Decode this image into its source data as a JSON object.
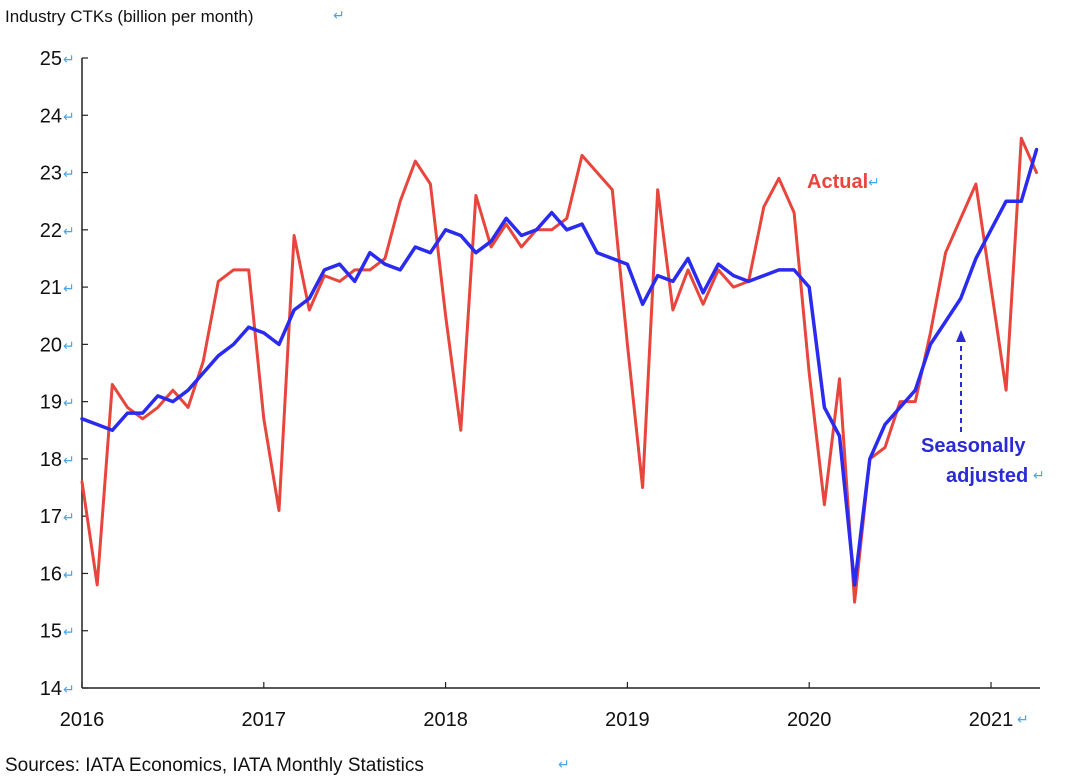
{
  "chart_data": {
    "type": "line",
    "title": "Industry CTKs (billion per month)",
    "ylim": [
      14,
      25
    ],
    "yticks": [
      "25",
      "24",
      "23",
      "22",
      "21",
      "20",
      "19",
      "18",
      "17",
      "16",
      "15",
      "14"
    ],
    "xticks": [
      "2016",
      "2017",
      "2018",
      "2019",
      "2020",
      "2021"
    ],
    "x_start": "2016-01",
    "grid": false,
    "source": "Sources: IATA Economics, IATA Monthly Statistics",
    "colors": {
      "actual": "#e8453c",
      "seasonally_adjusted": "#2b2bf0"
    },
    "annotations": {
      "actual": "Actual",
      "seasonally_adjusted_line1": "Seasonally",
      "seasonally_adjusted_line2": "adjusted"
    },
    "series": [
      {
        "name": "Actual",
        "values": [
          17.6,
          15.8,
          19.3,
          18.9,
          18.7,
          18.9,
          19.2,
          18.9,
          19.7,
          21.1,
          21.3,
          21.3,
          18.7,
          17.1,
          21.9,
          20.6,
          21.2,
          21.1,
          21.3,
          21.3,
          21.5,
          22.5,
          23.2,
          22.8,
          20.5,
          18.5,
          22.6,
          21.7,
          22.1,
          21.7,
          22.0,
          22.0,
          22.2,
          23.3,
          23.0,
          22.7,
          20.0,
          17.5,
          22.7,
          20.6,
          21.3,
          20.7,
          21.3,
          21.0,
          21.1,
          22.4,
          22.9,
          22.3,
          19.5,
          17.2,
          19.4,
          15.5,
          18.0,
          18.2,
          19.0,
          19.0,
          20.2,
          21.6,
          22.2,
          22.8,
          21.0,
          19.2,
          23.6,
          23.0
        ]
      },
      {
        "name": "Seasonally adjusted",
        "values": [
          18.7,
          18.6,
          18.5,
          18.8,
          18.8,
          19.1,
          19.0,
          19.2,
          19.5,
          19.8,
          20.0,
          20.3,
          20.2,
          20.0,
          20.6,
          20.8,
          21.3,
          21.4,
          21.1,
          21.6,
          21.4,
          21.3,
          21.7,
          21.6,
          22.0,
          21.9,
          21.6,
          21.8,
          22.2,
          21.9,
          22.0,
          22.3,
          22.0,
          22.1,
          21.6,
          21.5,
          21.4,
          20.7,
          21.2,
          21.1,
          21.5,
          20.9,
          21.4,
          21.2,
          21.1,
          21.2,
          21.3,
          21.3,
          21.0,
          18.9,
          18.4,
          15.8,
          18.0,
          18.6,
          18.9,
          19.2,
          20.0,
          20.4,
          20.8,
          21.5,
          22.0,
          22.5,
          22.5,
          23.4
        ]
      }
    ]
  }
}
